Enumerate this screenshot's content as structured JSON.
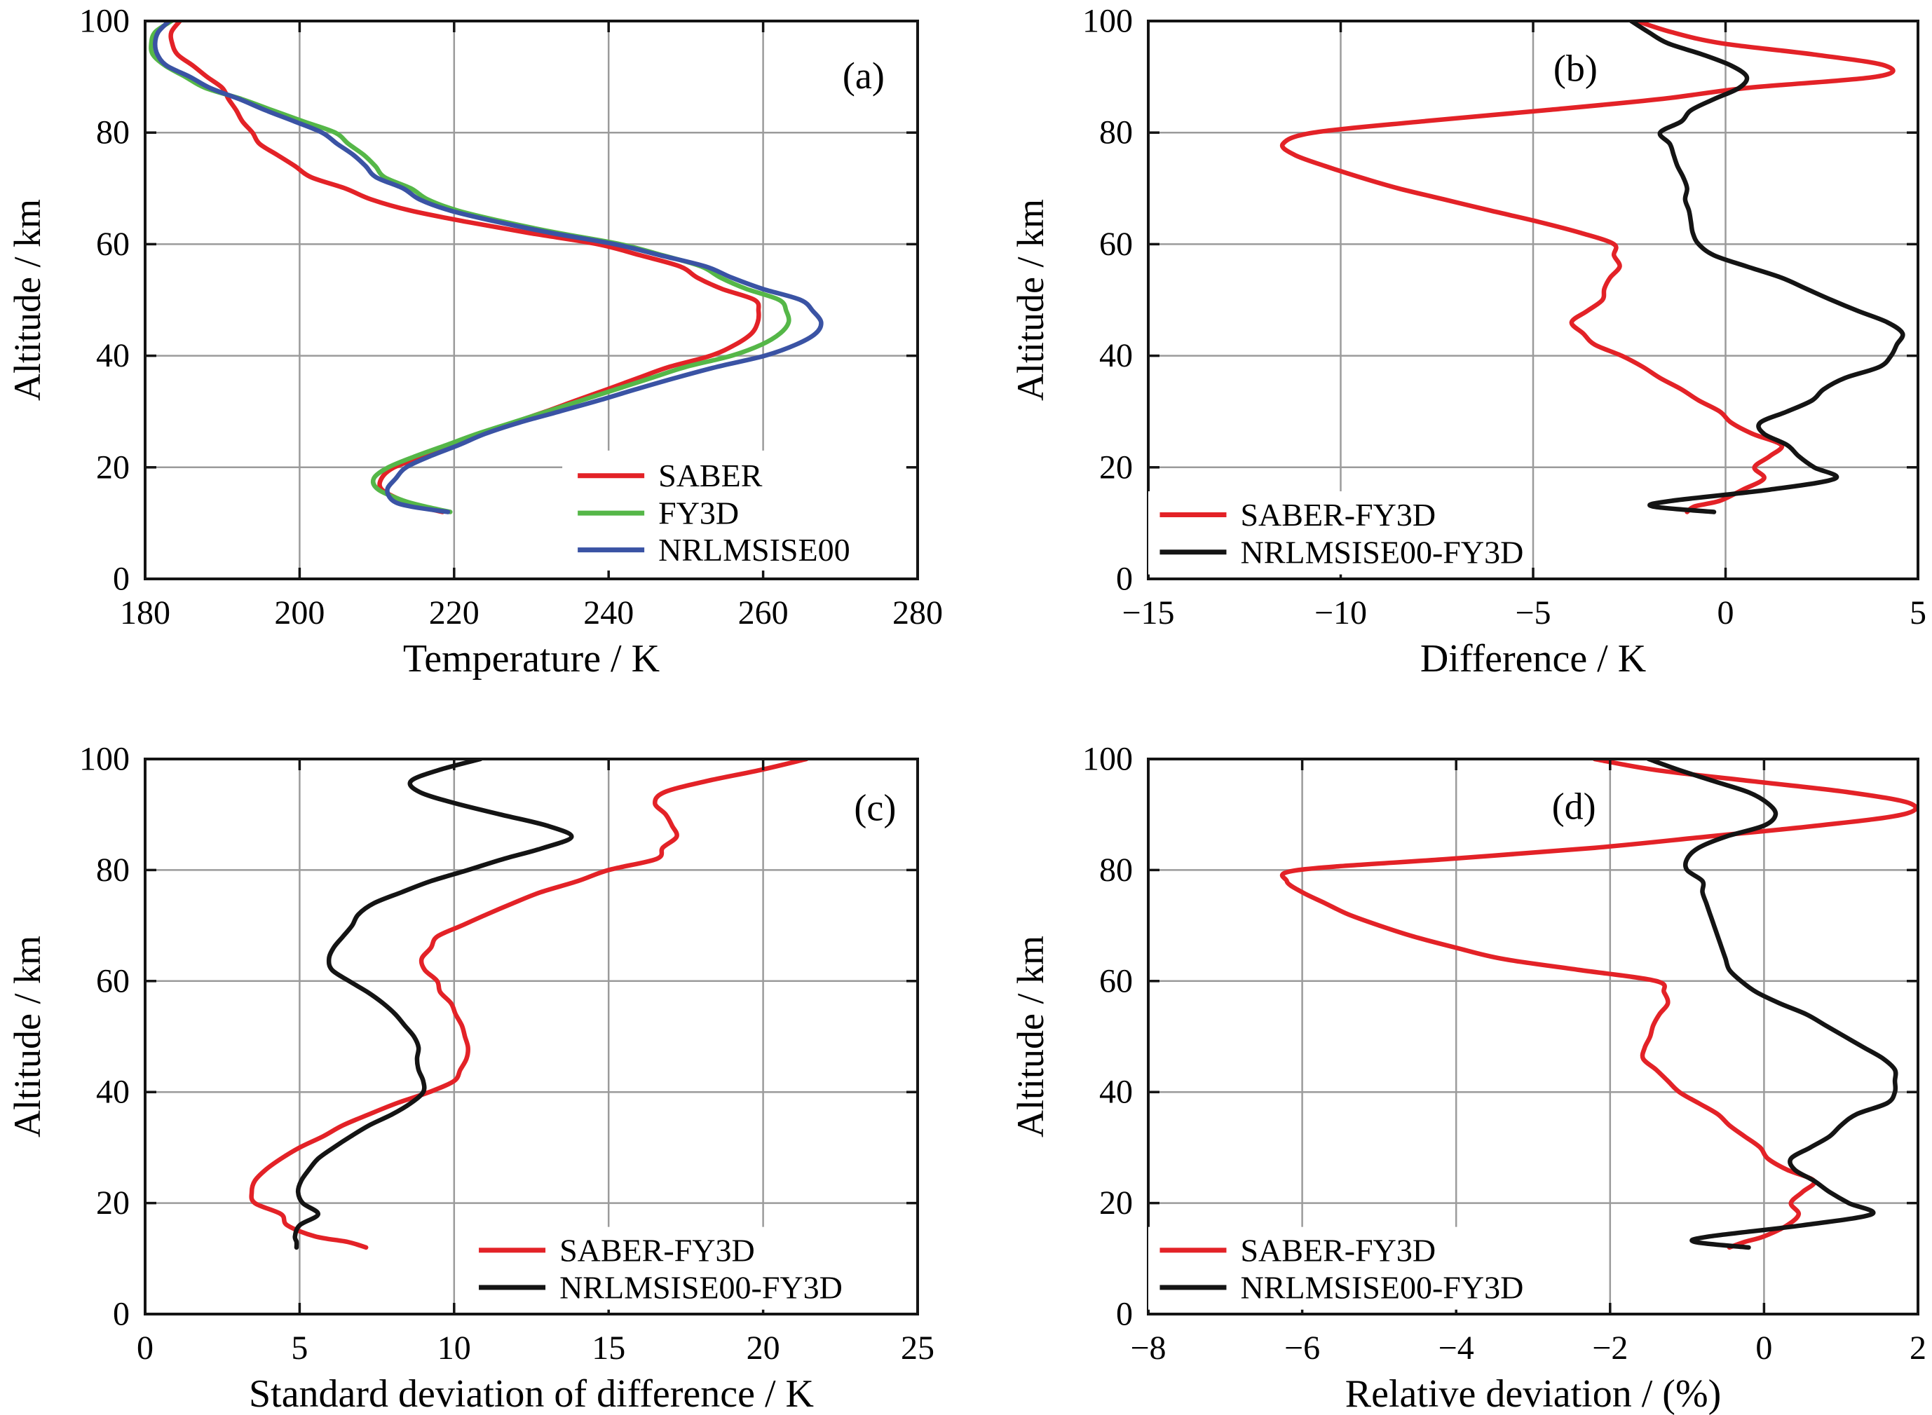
{
  "figure": {
    "description": "Four-panel comparison of atmospheric temperature profiles and their differences",
    "background": "#ffffff"
  },
  "style": {
    "saber_red": "#e32227",
    "fy3d_green": "#55b748",
    "nrlmsise_blue": "#3a53a4",
    "diff_black": "#141414",
    "grid_gray": "#9b9b9b",
    "frame_black": "#141414",
    "curve_width": 6.5,
    "frame_width": 4,
    "grid_width": 2.5,
    "tick_width": 3.5,
    "tick_length": 16
  },
  "chart_data": {
    "type": "line",
    "altitude_km": [
      12,
      13,
      14,
      16,
      18,
      20,
      22,
      24,
      26,
      28,
      30,
      32,
      34,
      36,
      38,
      40,
      42,
      44,
      46,
      48,
      50,
      52,
      54,
      56,
      58,
      60,
      62,
      64,
      66,
      68,
      70,
      72,
      74,
      76,
      78,
      80,
      82,
      84,
      86,
      88,
      90,
      92,
      94,
      96,
      98,
      100
    ],
    "panels": [
      {
        "id": "a",
        "panel_label": "(a)",
        "xlabel": "Temperature / K",
        "ylabel": "Altitude / km",
        "xlim": [
          180,
          280
        ],
        "xticks": [
          180,
          200,
          220,
          240,
          260,
          280
        ],
        "xtick_labels": [
          "180",
          "200",
          "220",
          "240",
          "260",
          "280"
        ],
        "ylim": [
          0,
          100
        ],
        "yticks": [
          0,
          20,
          40,
          60,
          80,
          100
        ],
        "ytick_labels": [
          "0",
          "20",
          "40",
          "60",
          "80",
          "100"
        ],
        "legend": {
          "entries": [
            {
              "key": "saber",
              "label": "SABER",
              "color": "#e32227"
            },
            {
              "key": "fy3d",
              "label": "FY3D",
              "color": "#55b748"
            },
            {
              "key": "nrlmsise00",
              "label": "NRLMSISE00",
              "color": "#3a53a4"
            }
          ]
        },
        "series": [
          {
            "key": "saber",
            "name": "SABER",
            "color": "#e32227",
            "values": [
              218.5,
              215.4,
              213.35,
              210.65,
              210.6,
              212.25,
              216.15,
              220.45,
              223.7,
              227.65,
              231.85,
              235.8,
              239.85,
              243.8,
              247.85,
              253.2,
              256.4,
              258.5,
              259.3,
              259.4,
              258.9,
              254.65,
              251.5,
              249.25,
              244.1,
              238.6,
              229.75,
              221.65,
              214.4,
              209.3,
              205.9,
              201.5,
              199.4,
              197.1,
              194.8,
              193.9,
              192.6,
              191.8,
              190.8,
              190.0,
              188.0,
              186.2,
              184.2,
              183.5,
              183.4,
              184.5
            ]
          },
          {
            "key": "fy3d",
            "name": "FY3D",
            "color": "#55b748",
            "values": [
              219.5,
              216.2,
              213.5,
              210.2,
              209.6,
              211.5,
              215.0,
              219.0,
              223.0,
              227.5,
              232.0,
              236.5,
              241.0,
              245.5,
              250.0,
              255.9,
              259.8,
              262.2,
              263.3,
              263.0,
              262.1,
              257.8,
              254.5,
              252.0,
              247.0,
              241.5,
              233.5,
              226.5,
              220.5,
              216.6,
              214.4,
              211.0,
              209.8,
              208.3,
              206.3,
              204.6,
              200.5,
              196.5,
              192.5,
              187.8,
              185.2,
              182.6,
              181.0,
              180.8,
              181.3,
              183.4
            ]
          },
          {
            "key": "nrlmsise00",
            "name": "NRLMSISE00",
            "color": "#3a53a4",
            "values": [
              219.2,
              214.3,
              212.1,
              211.35,
              212.45,
              213.8,
              216.9,
              220.6,
              224.0,
              228.4,
              233.6,
              238.75,
              243.55,
              248.6,
              254.0,
              260.2,
              264.25,
              266.8,
              267.5,
              266.45,
              264.85,
              259.9,
              255.95,
              252.55,
              246.7,
              240.8,
              232.65,
              225.6,
              219.55,
              215.55,
              213.4,
              209.9,
              208.55,
              206.95,
              204.85,
              202.9,
              199.35,
              195.6,
              192.2,
              188.4,
              185.8,
              182.8,
              181.6,
              181.3,
              181.7,
              183.1
            ]
          }
        ]
      },
      {
        "id": "b",
        "panel_label": "(b)",
        "xlabel": "Difference / K",
        "ylabel": "Altitude / km",
        "xlim": [
          -15,
          5
        ],
        "xticks": [
          -15,
          -10,
          -5,
          0,
          5
        ],
        "xtick_labels": [
          "−15",
          "−10",
          "−5",
          "0",
          "5"
        ],
        "ylim": [
          0,
          100
        ],
        "yticks": [
          0,
          20,
          40,
          60,
          80,
          100
        ],
        "ytick_labels": [
          "0",
          "20",
          "40",
          "60",
          "80",
          "100"
        ],
        "legend": {
          "entries": [
            {
              "key": "saber-fy3d",
              "label": "SABER-FY3D",
              "color": "#e32227"
            },
            {
              "key": "nrlmsise00-fy3d",
              "label": "NRLMSISE00-FY3D",
              "color": "#141414"
            }
          ]
        },
        "series": [
          {
            "key": "saber-fy3d",
            "name": "SABER-FY3D",
            "color": "#e32227",
            "values": [
              -1.0,
              -0.8,
              -0.15,
              0.45,
              1.0,
              0.75,
              1.15,
              1.45,
              0.7,
              0.15,
              -0.15,
              -0.7,
              -1.15,
              -1.7,
              -2.15,
              -2.7,
              -3.4,
              -3.7,
              -4.0,
              -3.6,
              -3.2,
              -3.15,
              -3.0,
              -2.75,
              -2.9,
              -2.9,
              -3.75,
              -4.85,
              -6.1,
              -7.3,
              -8.5,
              -9.5,
              -10.4,
              -11.2,
              -11.5,
              -10.7,
              -7.9,
              -4.7,
              -1.7,
              0.55,
              3.9,
              4.15,
              2.3,
              -0.1,
              -1.4,
              -2.3
            ]
          },
          {
            "key": "nrlmsise00-fy3d",
            "name": "NRLMSISE00-FY3D",
            "color": "#141414",
            "values": [
              -0.3,
              -1.9,
              -1.4,
              1.15,
              2.85,
              2.3,
              1.9,
              1.6,
              1.0,
              0.9,
              1.6,
              2.25,
              2.55,
              3.1,
              4.0,
              4.3,
              4.45,
              4.6,
              4.2,
              3.45,
              2.75,
              2.1,
              1.45,
              0.55,
              -0.3,
              -0.7,
              -0.85,
              -0.9,
              -0.95,
              -1.05,
              -1.0,
              -1.1,
              -1.25,
              -1.35,
              -1.45,
              -1.7,
              -1.15,
              -0.9,
              -0.3,
              0.35,
              0.55,
              0.15,
              -0.6,
              -1.5,
              -2.0,
              -2.45
            ]
          }
        ]
      },
      {
        "id": "c",
        "panel_label": "(c)",
        "xlabel": "Standard deviation of difference / K",
        "ylabel": "Altitude / km",
        "xlim": [
          0,
          25
        ],
        "xticks": [
          0,
          5,
          10,
          15,
          20,
          25
        ],
        "xtick_labels": [
          "0",
          "5",
          "10",
          "15",
          "20",
          "25"
        ],
        "ylim": [
          0,
          100
        ],
        "yticks": [
          0,
          20,
          40,
          60,
          80,
          100
        ],
        "ytick_labels": [
          "0",
          "20",
          "40",
          "60",
          "80",
          "100"
        ],
        "legend": {
          "entries": [
            {
              "key": "saber-fy3d",
              "label": "SABER-FY3D",
              "color": "#e32227"
            },
            {
              "key": "nrlmsise00-fy3d",
              "label": "NRLMSISE00-FY3D",
              "color": "#141414"
            }
          ]
        },
        "series": [
          {
            "key": "saber-fy3d",
            "name": "SABER-FY3D",
            "color": "#e32227",
            "values": [
              7.15,
              6.55,
              5.5,
              4.6,
              4.4,
              3.55,
              3.45,
              3.55,
              3.9,
              4.4,
              5.0,
              5.75,
              6.4,
              7.25,
              8.15,
              9.2,
              10.0,
              10.2,
              10.4,
              10.45,
              10.35,
              10.25,
              10.05,
              9.9,
              9.55,
              9.45,
              9.05,
              8.95,
              9.25,
              9.45,
              10.25,
              11.05,
              11.9,
              12.8,
              14.0,
              15.0,
              16.55,
              16.75,
              17.2,
              17.05,
              16.85,
              16.5,
              16.8,
              18.15,
              19.9,
              21.4
            ]
          },
          {
            "key": "nrlmsise00-fy3d",
            "name": "NRLMSISE00-FY3D",
            "color": "#141414",
            "values": [
              4.9,
              4.9,
              4.85,
              5.0,
              5.6,
              5.1,
              4.95,
              5.05,
              5.3,
              5.6,
              6.1,
              6.65,
              7.25,
              8.0,
              8.6,
              9.0,
              9.0,
              8.85,
              8.8,
              8.85,
              8.7,
              8.4,
              8.1,
              7.7,
              7.2,
              6.6,
              6.05,
              5.95,
              6.1,
              6.4,
              6.7,
              6.9,
              7.4,
              8.3,
              9.25,
              10.45,
              11.6,
              12.9,
              13.8,
              13.0,
              11.5,
              10.05,
              8.9,
              8.6,
              9.5,
              10.85
            ]
          }
        ]
      },
      {
        "id": "d",
        "panel_label": "(d)",
        "xlabel": "Relative deviation / (%)",
        "ylabel": "Altitude / km",
        "xlim": [
          -8,
          2
        ],
        "xticks": [
          -8,
          -6,
          -4,
          -2,
          0,
          2
        ],
        "xtick_labels": [
          "−8",
          "−6",
          "−4",
          "−2",
          "0",
          "2"
        ],
        "ylim": [
          0,
          100
        ],
        "yticks": [
          0,
          20,
          40,
          60,
          80,
          100
        ],
        "ytick_labels": [
          "0",
          "20",
          "40",
          "60",
          "80",
          "100"
        ],
        "legend": {
          "entries": [
            {
              "key": "saber-fy3d",
              "label": "SABER-FY3D",
              "color": "#e32227"
            },
            {
              "key": "nrlmsise00-fy3d",
              "label": "NRLMSISE00-FY3D",
              "color": "#141414"
            }
          ]
        },
        "series": [
          {
            "key": "saber-fy3d",
            "name": "SABER-FY3D",
            "color": "#e32227",
            "values": [
              -0.45,
              -0.25,
              0.0,
              0.3,
              0.45,
              0.35,
              0.5,
              0.65,
              0.3,
              0.05,
              -0.05,
              -0.25,
              -0.45,
              -0.6,
              -0.85,
              -1.1,
              -1.25,
              -1.4,
              -1.57,
              -1.55,
              -1.48,
              -1.44,
              -1.36,
              -1.25,
              -1.3,
              -1.4,
              -2.4,
              -3.4,
              -4.0,
              -4.55,
              -5.0,
              -5.4,
              -5.7,
              -6.0,
              -6.2,
              -6.05,
              -4.1,
              -2.2,
              -0.75,
              0.7,
              1.8,
              1.9,
              1.1,
              -0.15,
              -1.4,
              -2.2
            ]
          },
          {
            "key": "nrlmsise00-fy3d",
            "name": "NRLMSISE00-FY3D",
            "color": "#141414",
            "values": [
              -0.2,
              -0.9,
              -0.7,
              0.5,
              1.4,
              1.1,
              0.85,
              0.65,
              0.4,
              0.35,
              0.6,
              0.85,
              1.0,
              1.2,
              1.6,
              1.7,
              1.7,
              1.7,
              1.55,
              1.3,
              1.05,
              0.8,
              0.55,
              0.2,
              -0.1,
              -0.3,
              -0.45,
              -0.5,
              -0.55,
              -0.6,
              -0.65,
              -0.7,
              -0.75,
              -0.8,
              -0.8,
              -1.0,
              -1.0,
              -0.85,
              -0.5,
              0.0,
              0.15,
              0.05,
              -0.2,
              -0.65,
              -1.1,
              -1.5
            ]
          }
        ]
      }
    ]
  }
}
